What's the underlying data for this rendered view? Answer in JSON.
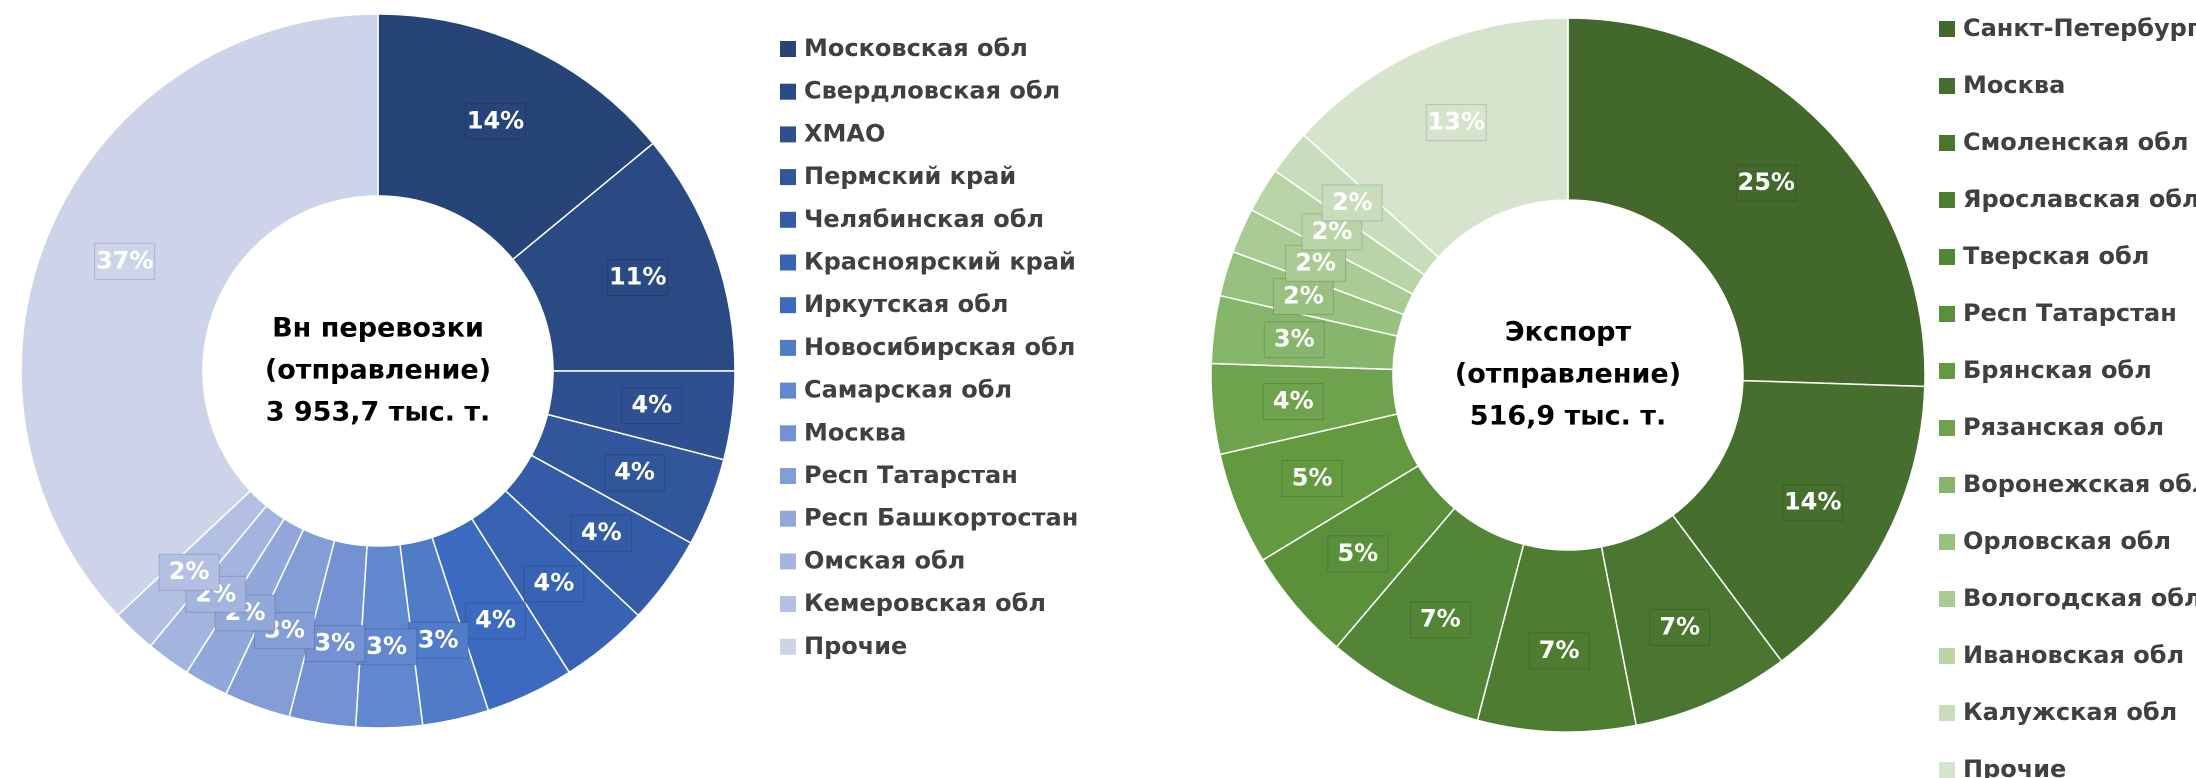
{
  "chart_data": [
    {
      "type": "donut",
      "center_text": [
        "Вн перевозки",
        "(отправление)",
        "3 953,7 тыс. т."
      ],
      "categories": [
        "Московская обл",
        "Свердловская обл",
        "ХМАО",
        "Пермский край",
        "Челябинская обл",
        "Красноярский край",
        "Иркутская обл",
        "Новосибирская обл",
        "Самарская обл",
        "Москва",
        "Респ Татарстан",
        "Респ Башкортостан",
        "Омская обл",
        "Кемеровская обл",
        "Прочие"
      ],
      "values": [
        14,
        11,
        4,
        4,
        4,
        4,
        4,
        3,
        3,
        3,
        3,
        2,
        2,
        2,
        37
      ],
      "value_labels": [
        "14%",
        "11%",
        "4%",
        "4%",
        "4%",
        "4%",
        "4%",
        "3%",
        "3%",
        "3%",
        "3%",
        "2%",
        "2%",
        "2%",
        "37%"
      ],
      "colors": [
        "#264478",
        "#2a4a84",
        "#2e5090",
        "#31569b",
        "#345ca6",
        "#3863b3",
        "#3c6ac0",
        "#4f7bc9",
        "#6187ce",
        "#7391d3",
        "#839dd6",
        "#93a8da",
        "#a3b4df",
        "#b3c0e3",
        "#cdd4ea"
      ]
    },
    {
      "type": "donut",
      "center_text": [
        "Экспорт",
        "(отправление)",
        "516,9 тыс. т."
      ],
      "categories": [
        "Санкт-Петербург",
        "Москва",
        "Смоленская обл",
        "Ярославская обл",
        "Тверская обл",
        "Респ Татарстан",
        "Брянская обл",
        "Рязанская обл",
        "Воронежская обл",
        "Орловская обл",
        "Вологодская обл",
        "Ивановская обл",
        "Калужская обл",
        "Прочие"
      ],
      "values": [
        25,
        14,
        7,
        7,
        7,
        5,
        5,
        4,
        3,
        2,
        2,
        2,
        2,
        13
      ],
      "value_labels": [
        "25%",
        "14%",
        "7%",
        "7%",
        "7%",
        "5%",
        "5%",
        "4%",
        "3%",
        "2%",
        "2%",
        "2%",
        "2%",
        "13%"
      ],
      "colors": [
        "#43682b",
        "#466f2d",
        "#4a7630",
        "#4e7d32",
        "#528535",
        "#5a9039",
        "#63993f",
        "#6fa24c",
        "#86b66b",
        "#98c07f",
        "#a9cb94",
        "#b9d5a8",
        "#c7ddbb",
        "#d6e4cd"
      ]
    }
  ]
}
